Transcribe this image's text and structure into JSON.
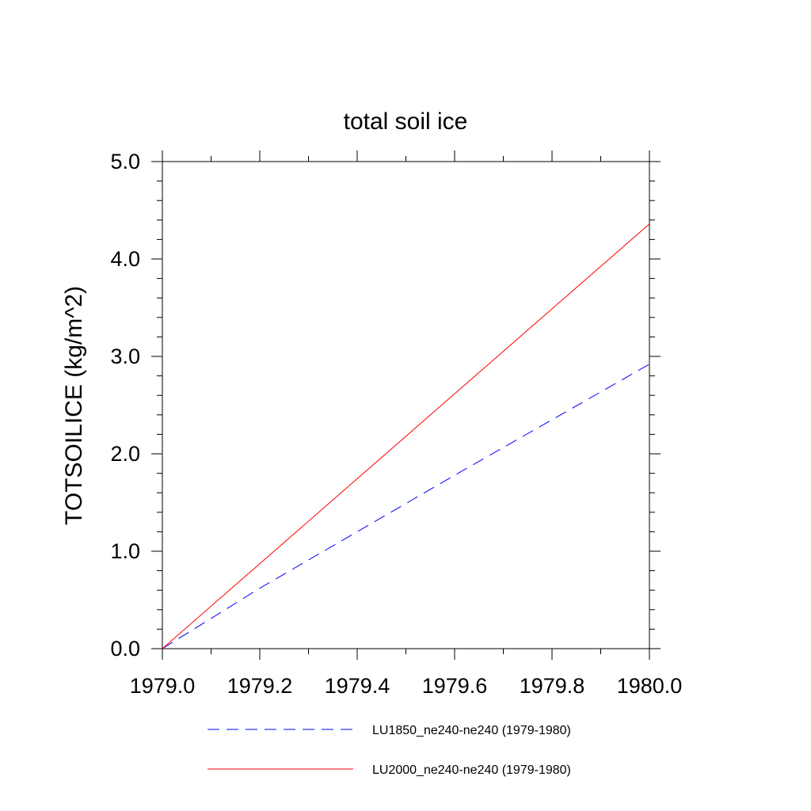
{
  "chart_data": {
    "type": "line",
    "title": "total soil ice",
    "xlabel": "",
    "ylabel": "TOTSOILICE  (kg/m^2)",
    "xlim": [
      1979.0,
      1980.0
    ],
    "ylim": [
      0.0,
      5.0
    ],
    "xticks": [
      "1979.0",
      "1979.2",
      "1979.4",
      "1979.6",
      "1979.8",
      "1980.0"
    ],
    "yticks": [
      "0.0",
      "1.0",
      "2.0",
      "3.0",
      "4.0",
      "5.0"
    ],
    "grid": false,
    "legend_position": "bottom",
    "series": [
      {
        "name": "LU1850_ne240-ne240 (1979-1980)",
        "color": "#0000ff",
        "style": "dashed",
        "x": [
          1979.0,
          1979.2,
          1979.4,
          1979.6,
          1979.8,
          1980.0
        ],
        "y": [
          0.0,
          0.62,
          1.2,
          1.78,
          2.35,
          2.92
        ]
      },
      {
        "name": "LU2000_ne240-ne240 (1979-1980)",
        "color": "#ff0000",
        "style": "solid",
        "x": [
          1979.0,
          1980.0
        ],
        "y": [
          0.0,
          4.36
        ]
      }
    ]
  }
}
